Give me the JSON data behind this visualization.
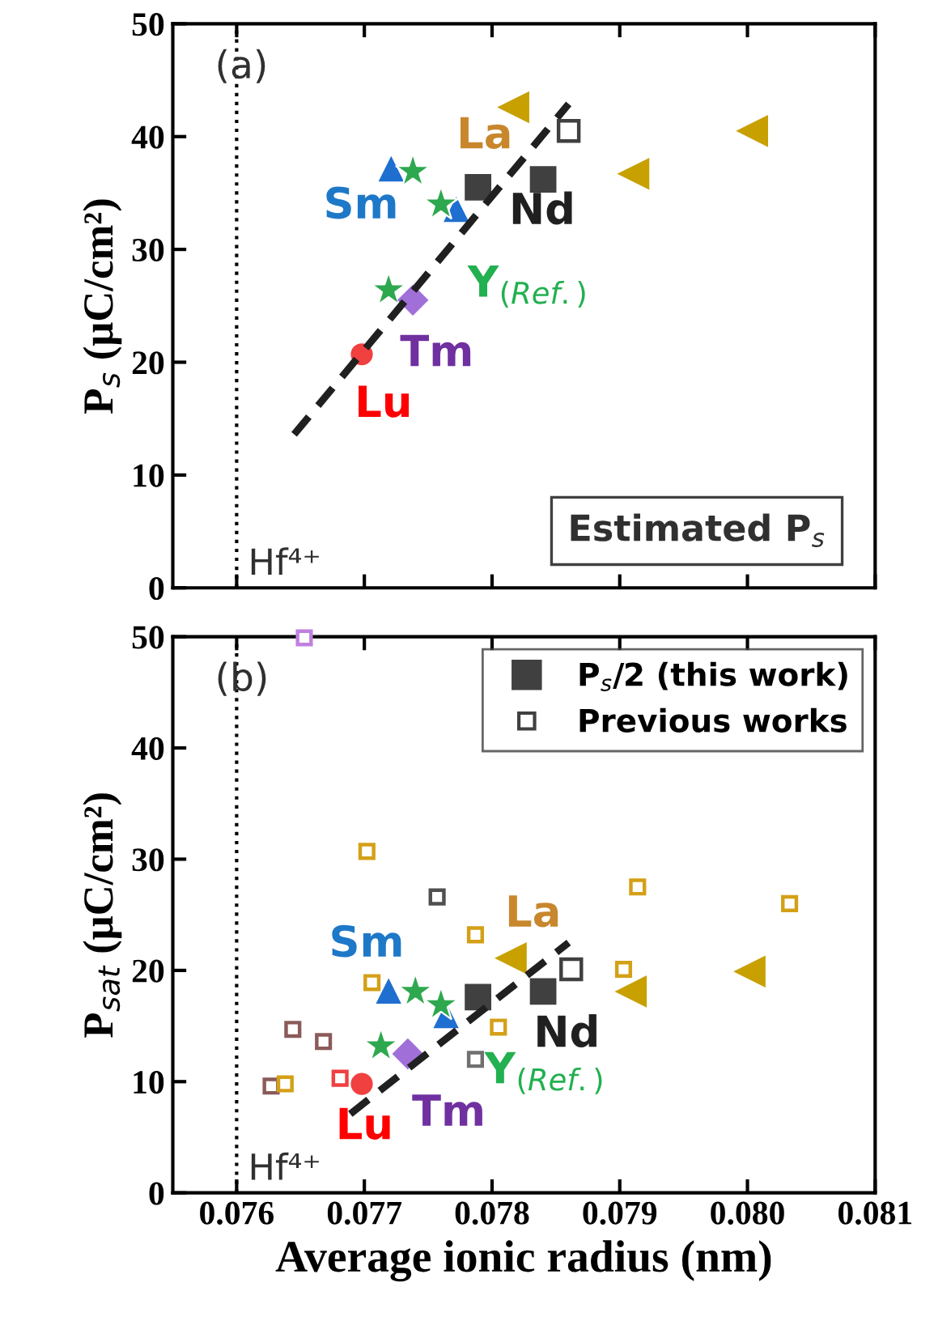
{
  "chart_data": [
    {
      "type": "scatter",
      "ylabel": "P$_{s}$ (μC/cm²)",
      "xlim": [
        0.0755,
        0.081
      ],
      "xticks": [
        0.076,
        0.077,
        0.078,
        0.079,
        0.08,
        0.081
      ],
      "ylim": [
        0,
        50
      ],
      "yticks": [
        0,
        10,
        20,
        30,
        40,
        50
      ],
      "tick_labels": "y",
      "grid": false,
      "legend": false,
      "ref_lines": [
        {
          "axis": "x",
          "value": 0.076,
          "label": "Hf⁴⁺",
          "color": "#000000",
          "line_style": "dotted"
        }
      ],
      "annotations": [
        "(a)",
        "Estimated P$_{s}$",
        "La",
        "Sm",
        "Nd",
        "Y$_{(Ref.)}$",
        "Tm",
        "Lu"
      ],
      "series": [
        {
          "type": "scatter",
          "marker": "triangle-left",
          "color": "#c8a000",
          "x": [
            0.07817,
            0.08004,
            0.07911
          ],
          "values": [
            42.6,
            40.5,
            36.7
          ]
        },
        {
          "type": "scatter",
          "marker": "triangle",
          "color": "#1f6fd0",
          "x": [
            0.07721,
            0.07772
          ],
          "values": [
            37.1,
            33.5
          ]
        },
        {
          "type": "scatter",
          "marker": "square",
          "color": "#404040",
          "x": [
            0.07789,
            0.0784
          ],
          "values": [
            35.5,
            36.2
          ]
        },
        {
          "type": "scatter",
          "marker": "square-open",
          "color": "#404040",
          "x": [
            0.0786
          ],
          "values": [
            40.5
          ]
        },
        {
          "type": "scatter",
          "marker": "star",
          "color": "#2ea84f",
          "x": [
            0.07738,
            0.0776,
            0.07719
          ],
          "values": [
            36.9,
            34.0,
            26.4
          ]
        },
        {
          "type": "scatter",
          "marker": "diamond",
          "color": "#a070d8",
          "x": [
            0.07738
          ],
          "values": [
            25.5
          ]
        },
        {
          "type": "scatter",
          "marker": "circle",
          "color": "#f04040",
          "x": [
            0.07698
          ],
          "values": [
            20.7
          ]
        },
        {
          "type": "line",
          "marker": "none",
          "line_style": "dashed",
          "color": "#202020",
          "x": [
            0.07645,
            0.0786
          ],
          "values": [
            13.6,
            42.9
          ]
        }
      ]
    },
    {
      "type": "scatter",
      "xlabel": "Average ionic radius (nm)",
      "ylabel": "P$_{sat}$ (μC/cm²)",
      "xlim": [
        0.0755,
        0.081
      ],
      "xticks": [
        0.076,
        0.077,
        0.078,
        0.079,
        {
          "value": 0.08,
          "label": "0.080"
        },
        0.081
      ],
      "ylim": [
        0,
        50
      ],
      "yticks": [
        0,
        10,
        20,
        30,
        40,
        50
      ],
      "grid": false,
      "legend": "top right",
      "ref_lines": [
        {
          "axis": "x",
          "value": 0.076,
          "label": "Hf⁴⁺",
          "color": "#000000",
          "line_style": "dotted"
        }
      ],
      "annotations": [
        "(b)",
        "La",
        "Sm",
        "Nd",
        "Y$_{(Ref.)}$",
        "Tm",
        "Lu"
      ],
      "series": [
        {
          "type": "scatter",
          "marker": "square-open",
          "name": "Previous works",
          "color": "#404040",
          "x": [
            0.07653,
            0.07702,
            0.07757,
            0.07914,
            0.08033,
            0.07787,
            0.07706,
            0.07903,
            0.07805,
            0.07644,
            0.07668,
            0.07627,
            0.07638,
            0.07681,
            0.07787
          ],
          "values": [
            49.9,
            30.7,
            26.6,
            27.5,
            26.0,
            23.2,
            18.9,
            20.1,
            14.9,
            14.7,
            13.6,
            9.6,
            9.8,
            10.3,
            12.0
          ],
          "colors": [
            "#c080e0",
            "#d4a017",
            "#505050",
            "#d4a017",
            "#d4a017",
            "#d4a017",
            "#d4a017",
            "#d4a017",
            "#d4a017",
            "#8b5a5a",
            "#8b5a5a",
            "#8b5a5a",
            "#d4a017",
            "#f04040",
            "#707070"
          ]
        },
        {
          "type": "scatter",
          "marker": "triangle-left",
          "color": "#c8a000",
          "x": [
            0.07815,
            0.07909,
            0.08002
          ],
          "values": [
            21.1,
            18.1,
            19.9
          ]
        },
        {
          "type": "scatter",
          "marker": "triangle",
          "color": "#1f6fd0",
          "x": [
            0.07719,
            0.07764
          ],
          "values": [
            18.1,
            15.9
          ]
        },
        {
          "type": "scatter",
          "marker": "square",
          "name": "P$_{s}$/2 (this work)",
          "color": "#404040",
          "x": [
            0.07789,
            0.0784
          ],
          "values": [
            17.6,
            18.1
          ]
        },
        {
          "type": "scatter",
          "marker": "square-open",
          "color": "#404040",
          "x": [
            0.07862
          ],
          "values": [
            20.1
          ]
        },
        {
          "type": "scatter",
          "marker": "star",
          "color": "#2ea84f",
          "x": [
            0.0774,
            0.0776,
            0.07713
          ],
          "values": [
            18.1,
            16.9,
            13.2
          ]
        },
        {
          "type": "scatter",
          "marker": "diamond",
          "color": "#a070d8",
          "x": [
            0.07734
          ],
          "values": [
            12.5
          ]
        },
        {
          "type": "scatter",
          "marker": "circle",
          "color": "#f04040",
          "x": [
            0.07698
          ],
          "values": [
            9.8
          ]
        },
        {
          "type": "line",
          "marker": "none",
          "line_style": "dashed",
          "color": "#202020",
          "x": [
            0.07689,
            0.0786
          ],
          "values": [
            7.1,
            22.5
          ]
        }
      ]
    }
  ]
}
